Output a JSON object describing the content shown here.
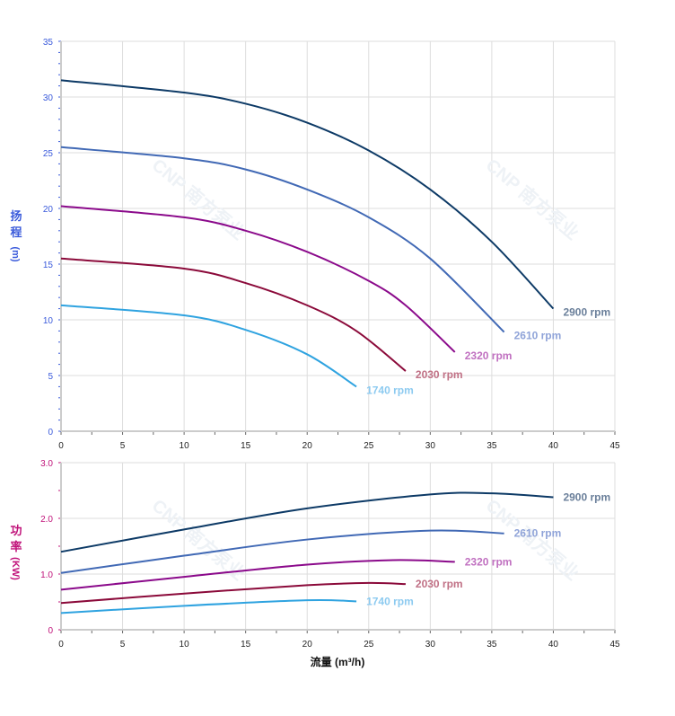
{
  "chart_data": [
    {
      "type": "line",
      "ylabel_chars": [
        "扬",
        "程",
        "(m)"
      ],
      "ylabel_color": "#3b5bdb",
      "ylim": [
        0,
        35
      ],
      "yticks": [
        0,
        5,
        10,
        15,
        20,
        25,
        30,
        35
      ],
      "xlim": [
        0,
        45
      ],
      "xticks": [
        0,
        5,
        10,
        15,
        20,
        25,
        30,
        35,
        40,
        45
      ],
      "grid": true,
      "series": [
        {
          "name": "2900 rpm",
          "color": "#0d3a66",
          "label_color": "#6a7f9a",
          "x": [
            0,
            10,
            15,
            20,
            25,
            30,
            35,
            40
          ],
          "y": [
            31.5,
            30.4,
            29.4,
            27.7,
            25.2,
            21.7,
            17.0,
            11.0
          ]
        },
        {
          "name": "2610 rpm",
          "color": "#4169b5",
          "label_color": "#8fa3d8",
          "x": [
            0,
            10,
            15,
            20,
            25,
            30,
            36
          ],
          "y": [
            25.5,
            24.5,
            23.5,
            21.7,
            19.2,
            15.5,
            8.9
          ]
        },
        {
          "name": "2320 rpm",
          "color": "#8b0a8b",
          "label_color": "#c070c0",
          "x": [
            0,
            10,
            15,
            20,
            25,
            28,
            32
          ],
          "y": [
            20.2,
            19.2,
            18.0,
            16.1,
            13.5,
            11.3,
            7.1
          ]
        },
        {
          "name": "2030 rpm",
          "color": "#8b0a3a",
          "label_color": "#c07085",
          "x": [
            0,
            10,
            15,
            20,
            24,
            28
          ],
          "y": [
            15.5,
            14.6,
            13.3,
            11.3,
            9.0,
            5.4
          ]
        },
        {
          "name": "1740 rpm",
          "color": "#2fa3e0",
          "label_color": "#8ccaf0",
          "x": [
            0,
            10,
            15,
            20,
            24
          ],
          "y": [
            11.3,
            10.4,
            9.1,
            6.9,
            4.0
          ]
        }
      ]
    },
    {
      "type": "line",
      "ylabel_chars": [
        "功",
        "率",
        "(KW)"
      ],
      "ylabel_color": "#c0137a",
      "ylim": [
        0,
        3
      ],
      "yticks": [
        "0",
        "1.0",
        "2.0",
        "3.0"
      ],
      "xlim": [
        0,
        45
      ],
      "xticks": [
        0,
        5,
        10,
        15,
        20,
        25,
        30,
        35,
        40,
        45
      ],
      "xlabel": "流量 (m³/h)",
      "grid": true,
      "series": [
        {
          "name": "2900 rpm",
          "color": "#0d3a66",
          "label_color": "#6a7f9a",
          "x": [
            0,
            10,
            20,
            30,
            35,
            40
          ],
          "y": [
            1.4,
            1.8,
            2.18,
            2.43,
            2.45,
            2.38
          ]
        },
        {
          "name": "2610 rpm",
          "color": "#4169b5",
          "label_color": "#8fa3d8",
          "x": [
            0,
            10,
            20,
            30,
            36
          ],
          "y": [
            1.02,
            1.33,
            1.62,
            1.78,
            1.73
          ]
        },
        {
          "name": "2320 rpm",
          "color": "#8b0a8b",
          "label_color": "#c070c0",
          "x": [
            0,
            10,
            20,
            27,
            32
          ],
          "y": [
            0.72,
            0.95,
            1.17,
            1.25,
            1.22
          ]
        },
        {
          "name": "2030 rpm",
          "color": "#8b0a3a",
          "label_color": "#c07085",
          "x": [
            0,
            10,
            20,
            25,
            28
          ],
          "y": [
            0.48,
            0.65,
            0.8,
            0.84,
            0.82
          ]
        },
        {
          "name": "1740 rpm",
          "color": "#2fa3e0",
          "label_color": "#8ccaf0",
          "x": [
            0,
            10,
            20,
            24
          ],
          "y": [
            0.3,
            0.43,
            0.53,
            0.51
          ]
        }
      ]
    }
  ],
  "watermark": "CNP 南方泵业"
}
